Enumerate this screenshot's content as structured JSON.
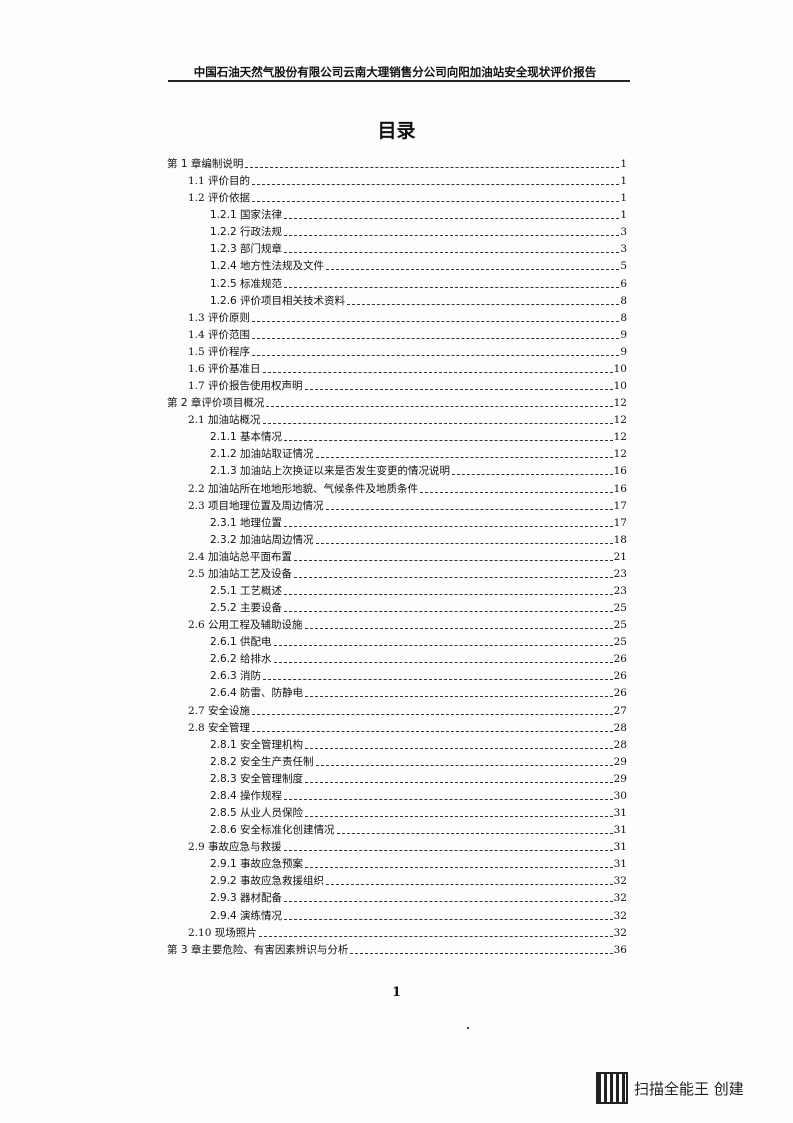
{
  "header": {
    "title": "中国石油天然气股份有限公司云南大理销售分公司向阳加油站安全现状评价报告"
  },
  "toc_title": "目录",
  "entries": [
    {
      "level": 0,
      "label": "第 1 章编制说明",
      "page": "1"
    },
    {
      "level": 1,
      "label": "1.1 评价目的",
      "page": "1"
    },
    {
      "level": 1,
      "label": "1.2 评价依据",
      "page": "1"
    },
    {
      "level": 2,
      "label": "1.2.1 国家法律",
      "page": "1"
    },
    {
      "level": 2,
      "label": "1.2.2 行政法规",
      "page": "3"
    },
    {
      "level": 2,
      "label": "1.2.3 部门规章",
      "page": "3"
    },
    {
      "level": 2,
      "label": "1.2.4 地方性法规及文件",
      "page": "5"
    },
    {
      "level": 2,
      "label": "1.2.5 标准规范",
      "page": "6"
    },
    {
      "level": 2,
      "label": "1.2.6 评价项目相关技术资料",
      "page": "8"
    },
    {
      "level": 1,
      "label": "1.3 评价原则",
      "page": "8"
    },
    {
      "level": 1,
      "label": "1.4 评价范围",
      "page": "9"
    },
    {
      "level": 1,
      "label": "1.5 评价程序",
      "page": "9"
    },
    {
      "level": 1,
      "label": "1.6 评价基准日",
      "page": "10"
    },
    {
      "level": 1,
      "label": "1.7 评价报告使用权声明",
      "page": "10"
    },
    {
      "level": 0,
      "label": "第 2 章评价项目概况",
      "page": "12"
    },
    {
      "level": 1,
      "label": "2.1 加油站概况",
      "page": "12"
    },
    {
      "level": 2,
      "label": "2.1.1 基本情况",
      "page": "12"
    },
    {
      "level": 2,
      "label": "2.1.2 加油站取证情况",
      "page": "12"
    },
    {
      "level": 2,
      "label": "2.1.3 加油站上次换证以来是否发生变更的情况说明",
      "page": "16"
    },
    {
      "level": 1,
      "label": "2.2 加油站所在地地形地貌、气候条件及地质条件",
      "page": "16"
    },
    {
      "level": 1,
      "label": "2.3 项目地理位置及周边情况",
      "page": "17"
    },
    {
      "level": 2,
      "label": "2.3.1 地理位置",
      "page": "17"
    },
    {
      "level": 2,
      "label": "2.3.2 加油站周边情况",
      "page": "18"
    },
    {
      "level": 1,
      "label": "2.4 加油站总平面布置",
      "page": "21"
    },
    {
      "level": 1,
      "label": "2.5 加油站工艺及设备",
      "page": "23"
    },
    {
      "level": 2,
      "label": "2.5.1 工艺概述",
      "page": "23"
    },
    {
      "level": 2,
      "label": "2.5.2 主要设备",
      "page": "25"
    },
    {
      "level": 1,
      "label": "2.6 公用工程及辅助设施",
      "page": "25"
    },
    {
      "level": 2,
      "label": "2.6.1 供配电",
      "page": "25"
    },
    {
      "level": 2,
      "label": "2.6.2 给排水",
      "page": "26"
    },
    {
      "level": 2,
      "label": "2.6.3 消防",
      "page": "26"
    },
    {
      "level": 2,
      "label": "2.6.4 防雷、防静电",
      "page": "26"
    },
    {
      "level": 1,
      "label": "2.7 安全设施",
      "page": "27"
    },
    {
      "level": 1,
      "label": "2.8 安全管理",
      "page": "28"
    },
    {
      "level": 2,
      "label": "2.8.1 安全管理机构",
      "page": "28"
    },
    {
      "level": 2,
      "label": "2.8.2 安全生产责任制",
      "page": "29"
    },
    {
      "level": 2,
      "label": "2.8.3 安全管理制度",
      "page": "29"
    },
    {
      "level": 2,
      "label": "2.8.4 操作规程",
      "page": "30"
    },
    {
      "level": 2,
      "label": "2.8.5 从业人员保险",
      "page": "31"
    },
    {
      "level": 2,
      "label": "2.8.6 安全标准化创建情况",
      "page": "31"
    },
    {
      "level": 1,
      "label": "2.9 事故应急与救援",
      "page": "31"
    },
    {
      "level": 2,
      "label": "2.9.1 事故应急预案",
      "page": "31"
    },
    {
      "level": 2,
      "label": "2.9.2 事故应急救援组织",
      "page": "32"
    },
    {
      "level": 2,
      "label": "2.9.3 器材配备",
      "page": "32"
    },
    {
      "level": 2,
      "label": "2.9.4 演练情况",
      "page": "32"
    },
    {
      "level": 1,
      "label": "2.10 现场照片",
      "page": "32"
    },
    {
      "level": 0,
      "label": "第 3 章主要危险、有害因素辨识与分析",
      "page": "36"
    }
  ],
  "footer": {
    "page_number": "1"
  },
  "watermark": {
    "text": "扫描全能王 创建",
    "icon": "qr-code-icon"
  }
}
